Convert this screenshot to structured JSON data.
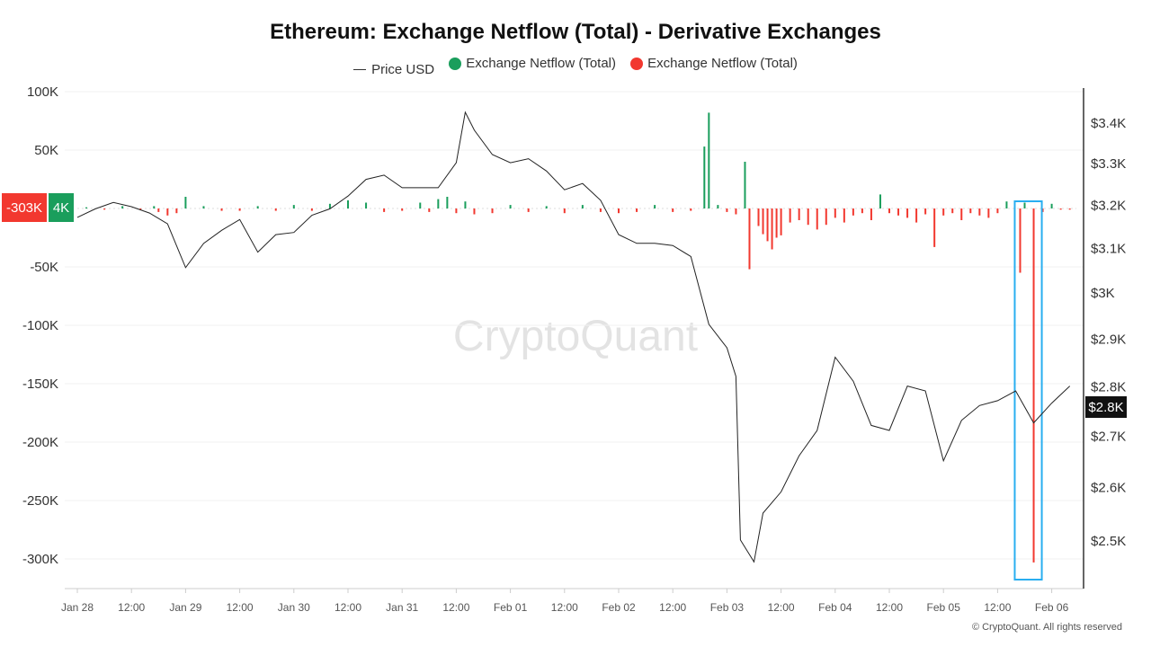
{
  "chart_data": {
    "type": "bar+line",
    "title": "Ethereum: Exchange Netflow (Total) - Derivative Exchanges",
    "legend": [
      {
        "label": "Price USD",
        "color": "#333333",
        "marker": "line"
      },
      {
        "label": "Exchange Netflow (Total)",
        "color": "#1a9e5c",
        "marker": "dot"
      },
      {
        "label": "Exchange Netflow (Total)",
        "color": "#f2382f",
        "marker": "dot"
      }
    ],
    "legend_placement": "top-center",
    "grid": "horizontal",
    "left_axis": {
      "ticks": [
        "100K",
        "50K",
        "-50K",
        "-100K",
        "-150K",
        "-200K",
        "-250K",
        "-300K"
      ],
      "tick_values": [
        100,
        50,
        -50,
        -100,
        -150,
        -200,
        -250,
        -300
      ],
      "unit": "K",
      "range": [
        -330,
        100
      ]
    },
    "right_axis": {
      "scale": "log",
      "ticks": [
        "$3.4K",
        "$3.3K",
        "$3.2K",
        "$3.1K",
        "$3K",
        "$2.9K",
        "$2.8K",
        "$2.7K",
        "$2.6K",
        "$2.5K"
      ],
      "tick_values": [
        3400,
        3300,
        3200,
        3100,
        3000,
        2900,
        2800,
        2700,
        2600,
        2500
      ]
    },
    "x_ticks": [
      "Jan 28",
      "12:00",
      "Jan 29",
      "12:00",
      "Jan 30",
      "12:00",
      "Jan 31",
      "12:00",
      "Feb 01",
      "12:00",
      "Feb 02",
      "12:00",
      "Feb 03",
      "12:00",
      "Feb 04",
      "12:00",
      "Feb 05",
      "12:00",
      "Feb 06"
    ],
    "price_usd": [
      [
        "01-28 00:00",
        3170
      ],
      [
        "01-28 04:00",
        3190
      ],
      [
        "01-28 08:00",
        3205
      ],
      [
        "01-28 12:00",
        3195
      ],
      [
        "01-28 16:00",
        3180
      ],
      [
        "01-28 20:00",
        3155
      ],
      [
        "01-29 00:00",
        3055
      ],
      [
        "01-29 04:00",
        3110
      ],
      [
        "01-29 08:00",
        3140
      ],
      [
        "01-29 12:00",
        3165
      ],
      [
        "01-29 16:00",
        3090
      ],
      [
        "01-29 20:00",
        3130
      ],
      [
        "01-30 00:00",
        3135
      ],
      [
        "01-30 04:00",
        3175
      ],
      [
        "01-30 08:00",
        3190
      ],
      [
        "01-30 12:00",
        3220
      ],
      [
        "01-30 16:00",
        3260
      ],
      [
        "01-30 20:00",
        3270
      ],
      [
        "01-31 00:00",
        3240
      ],
      [
        "01-31 04:00",
        3240
      ],
      [
        "01-31 08:00",
        3240
      ],
      [
        "01-31 12:00",
        3300
      ],
      [
        "01-31 14:00",
        3425
      ],
      [
        "01-31 16:00",
        3380
      ],
      [
        "01-31 20:00",
        3320
      ],
      [
        "02-01 00:00",
        3300
      ],
      [
        "02-01 04:00",
        3310
      ],
      [
        "02-01 08:00",
        3280
      ],
      [
        "02-01 12:00",
        3235
      ],
      [
        "02-01 16:00",
        3250
      ],
      [
        "02-01 20:00",
        3210
      ],
      [
        "02-02 00:00",
        3130
      ],
      [
        "02-02 04:00",
        3110
      ],
      [
        "02-02 08:00",
        3110
      ],
      [
        "02-02 12:00",
        3105
      ],
      [
        "02-02 16:00",
        3080
      ],
      [
        "02-02 20:00",
        2930
      ],
      [
        "02-03 00:00",
        2880
      ],
      [
        "02-03 02:00",
        2820
      ],
      [
        "02-03 03:00",
        2500
      ],
      [
        "02-03 06:00",
        2460
      ],
      [
        "02-03 08:00",
        2550
      ],
      [
        "02-03 12:00",
        2590
      ],
      [
        "02-03 16:00",
        2660
      ],
      [
        "02-03 20:00",
        2710
      ],
      [
        "02-04 00:00",
        2860
      ],
      [
        "02-04 04:00",
        2810
      ],
      [
        "02-04 08:00",
        2720
      ],
      [
        "02-04 12:00",
        2710
      ],
      [
        "02-04 16:00",
        2800
      ],
      [
        "02-04 20:00",
        2790
      ],
      [
        "02-05 00:00",
        2650
      ],
      [
        "02-05 04:00",
        2730
      ],
      [
        "02-05 08:00",
        2760
      ],
      [
        "02-05 12:00",
        2770
      ],
      [
        "02-05 16:00",
        2790
      ],
      [
        "02-05 20:00",
        2725
      ],
      [
        "02-06 00:00",
        2765
      ],
      [
        "02-06 04:00",
        2800
      ]
    ],
    "netflow_k": [
      [
        "01-28 02:00",
        1
      ],
      [
        "01-28 06:00",
        -1
      ],
      [
        "01-28 10:00",
        2
      ],
      [
        "01-28 14:00",
        -1
      ],
      [
        "01-28 17:00",
        2
      ],
      [
        "01-28 18:00",
        -3
      ],
      [
        "01-28 20:00",
        -6
      ],
      [
        "01-28 22:00",
        -4
      ],
      [
        "01-29 00:00",
        10
      ],
      [
        "01-29 04:00",
        2
      ],
      [
        "01-29 08:00",
        -2
      ],
      [
        "01-29 12:00",
        -2
      ],
      [
        "01-29 16:00",
        2
      ],
      [
        "01-29 20:00",
        -2
      ],
      [
        "01-30 00:00",
        3
      ],
      [
        "01-30 04:00",
        -2
      ],
      [
        "01-30 08:00",
        4
      ],
      [
        "01-30 12:00",
        7
      ],
      [
        "01-30 16:00",
        5
      ],
      [
        "01-30 20:00",
        -3
      ],
      [
        "01-31 00:00",
        -2
      ],
      [
        "01-31 04:00",
        5
      ],
      [
        "01-31 06:00",
        -3
      ],
      [
        "01-31 08:00",
        8
      ],
      [
        "01-31 10:00",
        10
      ],
      [
        "01-31 12:00",
        -4
      ],
      [
        "01-31 14:00",
        6
      ],
      [
        "01-31 16:00",
        -5
      ],
      [
        "01-31 20:00",
        -4
      ],
      [
        "02-01 00:00",
        3
      ],
      [
        "02-01 04:00",
        -3
      ],
      [
        "02-01 08:00",
        2
      ],
      [
        "02-01 12:00",
        -4
      ],
      [
        "02-01 16:00",
        3
      ],
      [
        "02-01 20:00",
        -3
      ],
      [
        "02-02 00:00",
        -4
      ],
      [
        "02-02 04:00",
        -3
      ],
      [
        "02-02 08:00",
        3
      ],
      [
        "02-02 12:00",
        -3
      ],
      [
        "02-02 16:00",
        -2
      ],
      [
        "02-02 19:00",
        53
      ],
      [
        "02-02 20:00",
        82
      ],
      [
        "02-02 22:00",
        3
      ],
      [
        "02-03 00:00",
        -3
      ],
      [
        "02-03 02:00",
        -5
      ],
      [
        "02-03 04:00",
        40
      ],
      [
        "02-03 05:00",
        -52
      ],
      [
        "02-03 07:00",
        -15
      ],
      [
        "02-03 08:00",
        -22
      ],
      [
        "02-03 09:00",
        -28
      ],
      [
        "02-03 10:00",
        -35
      ],
      [
        "02-03 11:00",
        -25
      ],
      [
        "02-03 12:00",
        -23
      ],
      [
        "02-03 14:00",
        -12
      ],
      [
        "02-03 16:00",
        -10
      ],
      [
        "02-03 18:00",
        -14
      ],
      [
        "02-03 20:00",
        -18
      ],
      [
        "02-03 22:00",
        -14
      ],
      [
        "02-04 00:00",
        -8
      ],
      [
        "02-04 02:00",
        -12
      ],
      [
        "02-04 04:00",
        -6
      ],
      [
        "02-04 06:00",
        -4
      ],
      [
        "02-04 08:00",
        -10
      ],
      [
        "02-04 10:00",
        12
      ],
      [
        "02-04 12:00",
        -4
      ],
      [
        "02-04 14:00",
        -6
      ],
      [
        "02-04 16:00",
        -8
      ],
      [
        "02-04 18:00",
        -12
      ],
      [
        "02-04 20:00",
        -5
      ],
      [
        "02-04 22:00",
        -33
      ],
      [
        "02-05 00:00",
        -6
      ],
      [
        "02-05 02:00",
        -4
      ],
      [
        "02-05 04:00",
        -10
      ],
      [
        "02-05 06:00",
        -4
      ],
      [
        "02-05 08:00",
        -6
      ],
      [
        "02-05 10:00",
        -8
      ],
      [
        "02-05 12:00",
        -4
      ],
      [
        "02-05 14:00",
        6
      ],
      [
        "02-05 17:00",
        -55
      ],
      [
        "02-05 18:00",
        5
      ],
      [
        "02-05 20:00",
        -303
      ],
      [
        "02-05 22:00",
        -3
      ],
      [
        "02-06 00:00",
        4
      ],
      [
        "02-06 02:00",
        -1
      ],
      [
        "02-06 04:00",
        -1
      ]
    ],
    "current_values": {
      "netflow_red": "-303K",
      "netflow_green": "4K",
      "price": "$2.8K"
    },
    "highlight": {
      "from": "02-05 16:00",
      "to": "02-05 22:00",
      "color": "#29aef0"
    }
  },
  "watermark": "CryptoQuant",
  "footer": "© CryptoQuant. All rights reserved",
  "colors": {
    "up": "#1a9e5c",
    "down": "#f2382f",
    "price": "#222222"
  }
}
